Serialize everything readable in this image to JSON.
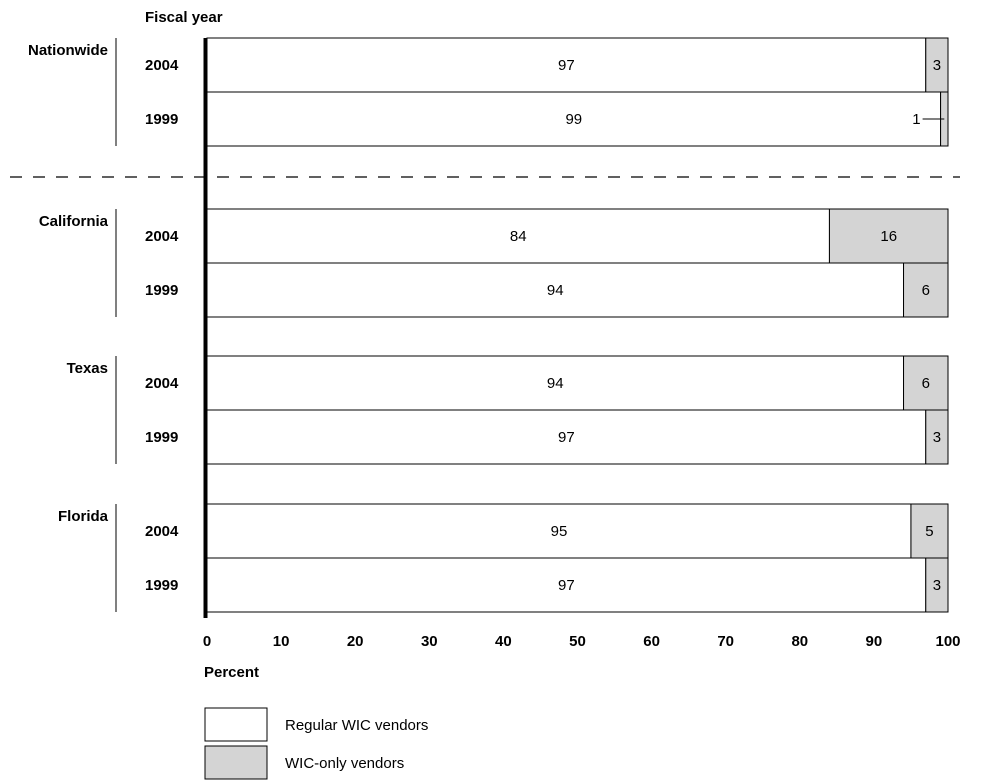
{
  "chart_data": {
    "type": "bar",
    "orientation": "horizontal",
    "stacked": true,
    "xlabel": "Percent",
    "ylabel": "Fiscal year",
    "xlim": [
      0,
      100
    ],
    "xticks": [
      "0",
      "10",
      "20",
      "30",
      "40",
      "50",
      "60",
      "70",
      "80",
      "90",
      "100"
    ],
    "groups": [
      {
        "name": "Nationwide",
        "bars": [
          {
            "year": "2004",
            "regular": 97,
            "wic_only": 3
          },
          {
            "year": "1999",
            "regular": 99,
            "wic_only": 1
          }
        ]
      },
      {
        "name": "California",
        "bars": [
          {
            "year": "2004",
            "regular": 84,
            "wic_only": 16
          },
          {
            "year": "1999",
            "regular": 94,
            "wic_only": 6
          }
        ]
      },
      {
        "name": "Texas",
        "bars": [
          {
            "year": "2004",
            "regular": 94,
            "wic_only": 6
          },
          {
            "year": "1999",
            "regular": 97,
            "wic_only": 3
          }
        ]
      },
      {
        "name": "Florida",
        "bars": [
          {
            "year": "2004",
            "regular": 95,
            "wic_only": 5
          },
          {
            "year": "1999",
            "regular": 97,
            "wic_only": 3
          }
        ]
      }
    ],
    "series": [
      {
        "name": "Regular WIC vendors",
        "key": "regular",
        "color": "#ffffff"
      },
      {
        "name": "WIC-only vendors",
        "key": "wic_only",
        "color": "#d4d4d4"
      }
    ],
    "legend_position": "bottom-left"
  }
}
